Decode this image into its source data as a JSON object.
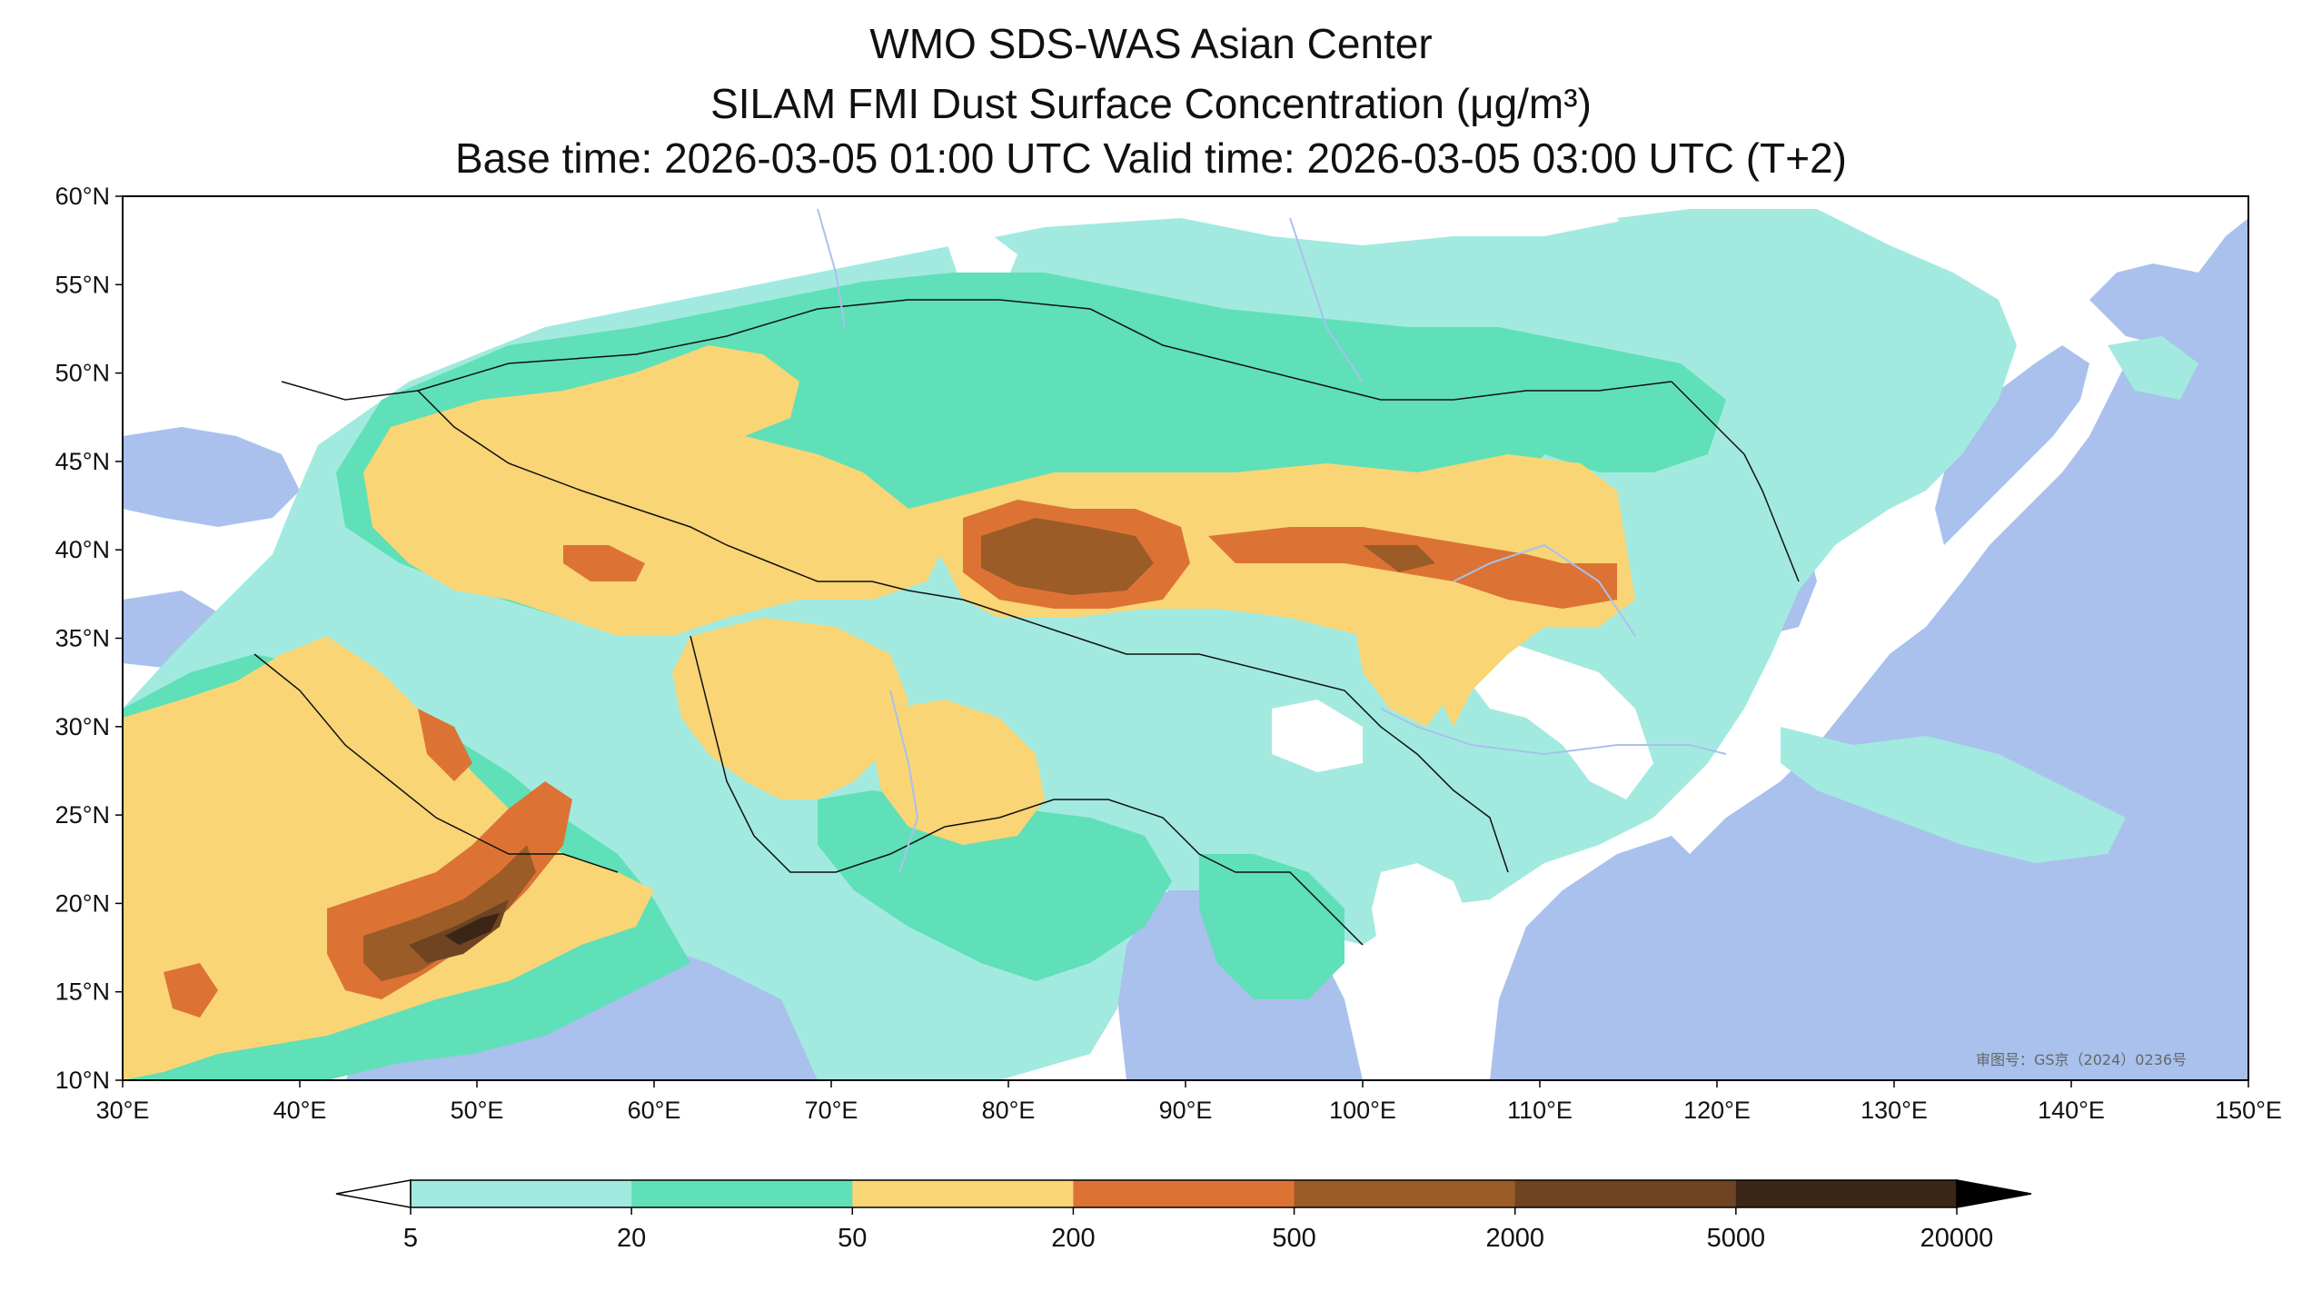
{
  "title": {
    "line1": "WMO SDS-WAS Asian Center",
    "line2": "SILAM FMI Dust Surface Concentration (μg/m³)",
    "line3": "Base time: 2026-03-05 01:00 UTC Valid time: 2026-03-05 03:00 UTC (T+2)"
  },
  "map": {
    "lon_range": [
      30,
      150
    ],
    "lat_range": [
      10,
      60
    ],
    "lon_ticks": [
      "30°E",
      "40°E",
      "50°E",
      "60°E",
      "70°E",
      "80°E",
      "90°E",
      "100°E",
      "110°E",
      "120°E",
      "130°E",
      "140°E",
      "150°E"
    ],
    "lat_ticks": [
      "60°N",
      "55°N",
      "50°N",
      "45°N",
      "40°N",
      "35°N",
      "30°N",
      "25°N",
      "20°N",
      "15°N",
      "10°N"
    ],
    "watermark": "审图号：GS京（2024）0236号",
    "colors": {
      "ocean": "#a9c1ec",
      "land": "#ffffff",
      "c5_20": "#a2eadf",
      "c20_50": "#5fe0b8",
      "c50_200": "#f9d576",
      "c200_500": "#dc7334",
      "c500_2000": "#9b5c27",
      "c2000_5000": "#6e4422",
      "c5000_20000": "#3a2516"
    }
  },
  "colorbar": {
    "ticks": [
      "5",
      "20",
      "50",
      "200",
      "500",
      "2000",
      "5000",
      "20000"
    ],
    "colors": [
      "#a2eadf",
      "#5fe0b8",
      "#f9d576",
      "#dc7334",
      "#9b5c27",
      "#6e4422",
      "#3a2516"
    ]
  }
}
